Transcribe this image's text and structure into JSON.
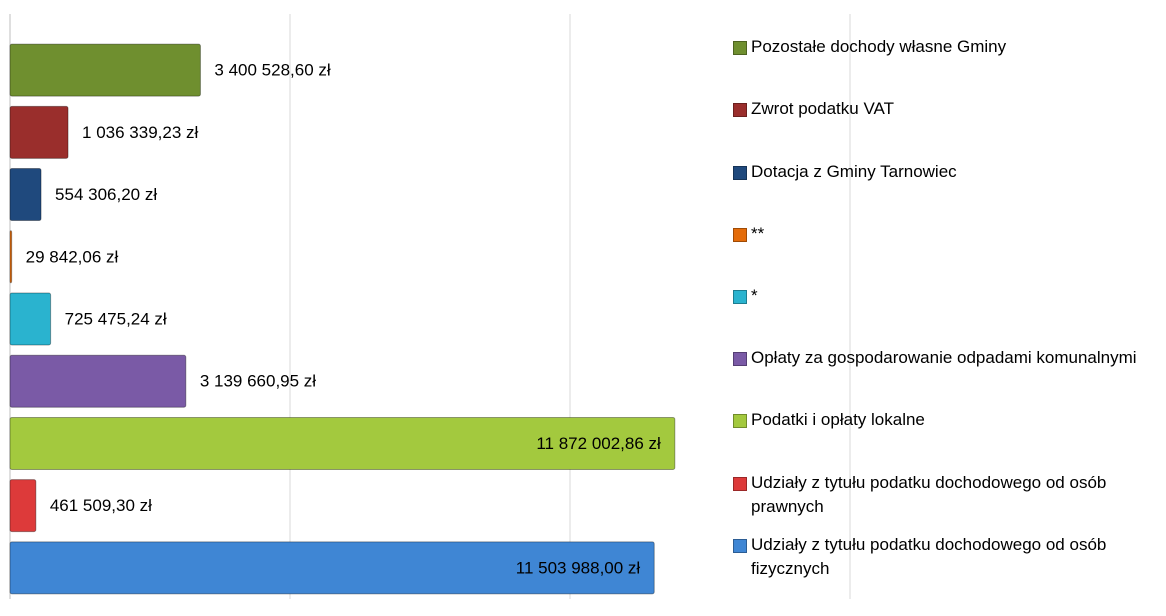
{
  "chart_data": {
    "type": "bar",
    "orientation": "horizontal",
    "categories": [
      "Pozostałe dochody własne Gminy",
      "Zwrot podatku VAT",
      "Dotacja z Gminy Tarnowiec",
      "**",
      "*",
      "Opłaty za gospodarowanie odpadami komunalnymi",
      "Podatki i opłaty lokalne",
      "Udziały z tytułu podatku dochodowego od osób prawnych",
      "Udziały z tytułu podatku dochodowego od osób fizycznych"
    ],
    "values": [
      3400528.6,
      1036339.23,
      554306.2,
      29842.06,
      725475.24,
      3139660.95,
      11872002.86,
      461509.3,
      11503988.0
    ],
    "value_labels": [
      "3 400 528,60 zł",
      "1 036 339,23 zł",
      "554 306,20 zł",
      "29 842,06 zł",
      "725 475,24 zł",
      "3 139 660,95 zł",
      "11 872 002,86 zł",
      "461 509,30 zł",
      "11 503 988,00 zł"
    ],
    "colors": [
      "#6f8f2f",
      "#9a2e2c",
      "#1f497d",
      "#e46c0a",
      "#2ab3cf",
      "#7a5aa6",
      "#a3c93e",
      "#dd3a3a",
      "#3f86d4"
    ],
    "xlim": [
      0,
      20000000
    ],
    "xticks": [
      0,
      5000000,
      10000000,
      15000000
    ],
    "grid": true,
    "legend": "right"
  }
}
